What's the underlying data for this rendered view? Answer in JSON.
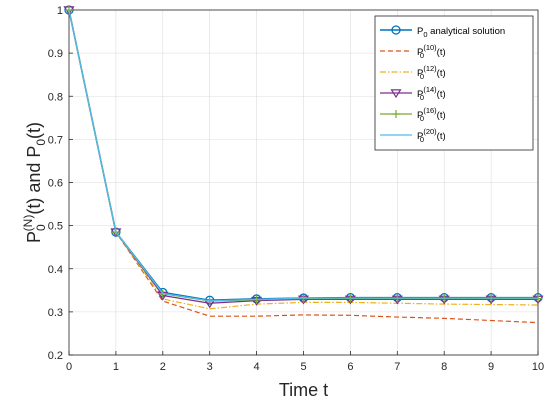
{
  "chart_data": {
    "type": "line",
    "xlabel": "Time t",
    "ylabel_parts": {
      "base": "P",
      "sub": "0",
      "sup": "(N)",
      "mid": "(t) and P",
      "sub2": "0",
      "end": "(t)"
    },
    "xlim": [
      0,
      10
    ],
    "ylim": [
      0.2,
      1.0
    ],
    "x_ticks": [
      "0",
      "1",
      "2",
      "3",
      "4",
      "5",
      "6",
      "7",
      "8",
      "9",
      "10"
    ],
    "y_ticks": [
      "0.2",
      "0.3",
      "0.4",
      "0.5",
      "0.6",
      "0.7",
      "0.8",
      "0.9",
      "1"
    ],
    "grid": true,
    "legend_position": "top-right",
    "x": [
      0,
      1,
      2,
      3,
      4,
      5,
      6,
      7,
      8,
      9,
      10
    ],
    "series": [
      {
        "legend_base": "P",
        "legend_sub": "0",
        "legend_sup": "",
        "legend_suffix": " analytical solution",
        "color": "#0072BD",
        "dash": "",
        "marker": "circle",
        "width": 1.6,
        "values": [
          1.0,
          0.485,
          0.345,
          0.327,
          0.33,
          0.332,
          0.333,
          0.333,
          0.333,
          0.333,
          0.333
        ]
      },
      {
        "legend_base": "P",
        "legend_sub": "0",
        "legend_sup": "(10)",
        "legend_suffix": "(t)",
        "color": "#D95319",
        "dash": "5,3",
        "marker": "none",
        "width": 1.2,
        "values": [
          1.0,
          0.485,
          0.325,
          0.29,
          0.29,
          0.293,
          0.292,
          0.288,
          0.285,
          0.28,
          0.275
        ]
      },
      {
        "legend_base": "P",
        "legend_sub": "0",
        "legend_sup": "(12)",
        "legend_suffix": "(t)",
        "color": "#EDB120",
        "dash": "6,2,1.5,2",
        "marker": "none",
        "width": 1.2,
        "values": [
          1.0,
          0.485,
          0.33,
          0.307,
          0.318,
          0.322,
          0.322,
          0.32,
          0.318,
          0.317,
          0.316
        ]
      },
      {
        "legend_base": "P",
        "legend_sub": "0",
        "legend_sup": "(14)",
        "legend_suffix": "(t)",
        "color": "#7E2F8E",
        "dash": "",
        "marker": "triangle-down",
        "width": 1.2,
        "values": [
          1.0,
          0.485,
          0.338,
          0.32,
          0.326,
          0.329,
          0.329,
          0.329,
          0.329,
          0.329,
          0.329
        ]
      },
      {
        "legend_base": "P",
        "legend_sub": "0",
        "legend_sup": "(16)",
        "legend_suffix": "(t)",
        "color": "#77AC30",
        "dash": "",
        "marker": "plus",
        "width": 1.2,
        "values": [
          1.0,
          0.485,
          0.342,
          0.325,
          0.328,
          0.331,
          0.331,
          0.331,
          0.331,
          0.331,
          0.331
        ]
      },
      {
        "legend_base": "P",
        "legend_sub": "0",
        "legend_sup": "(20)",
        "legend_suffix": "(t)",
        "color": "#4DBEEE",
        "dash": "",
        "marker": "none",
        "width": 1.2,
        "values": [
          1.0,
          0.485,
          0.343,
          0.326,
          0.329,
          0.332,
          0.332,
          0.332,
          0.332,
          0.332,
          0.332
        ]
      }
    ]
  }
}
